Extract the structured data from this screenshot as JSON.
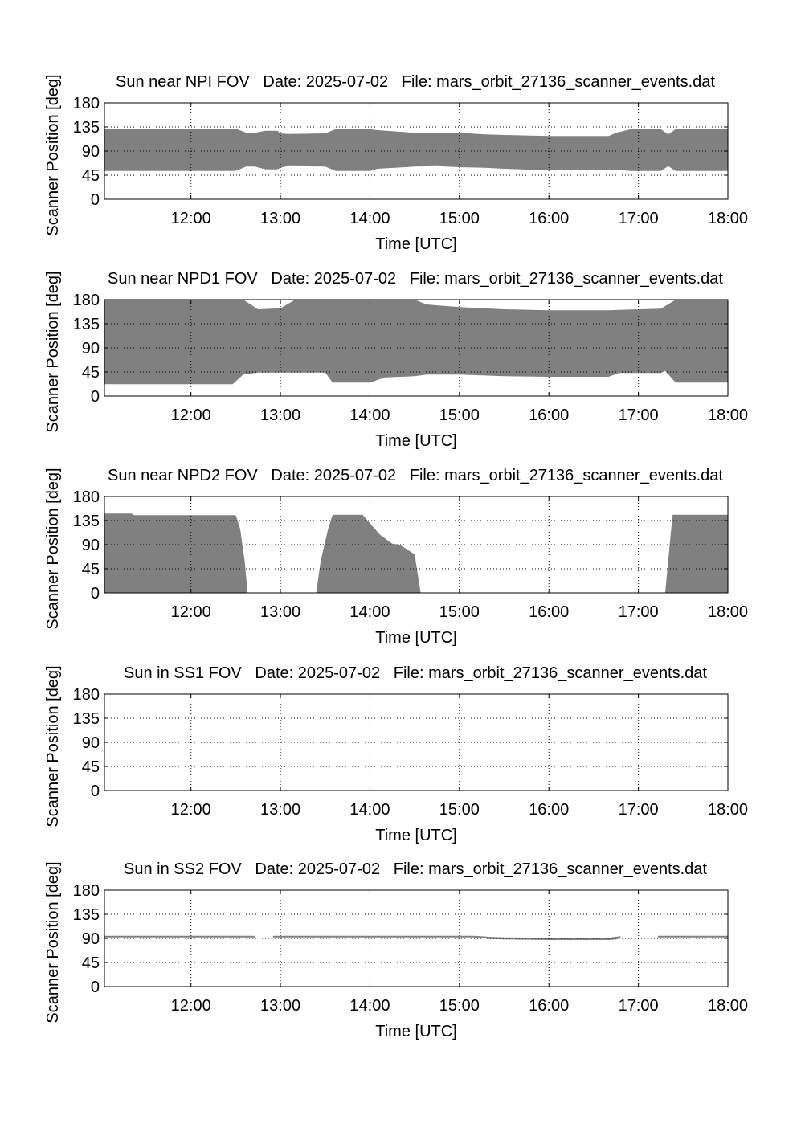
{
  "chart_data": [
    {
      "type": "area",
      "title": "Sun near NPI FOV   Date: 2025-07-02   File: mars_orbit_27136_scanner_events.dat",
      "xlabel": "Time [UTC]",
      "ylabel": "Scanner Position [deg]",
      "xlim": [
        "11:02",
        "18:00"
      ],
      "ylim": [
        0,
        180
      ],
      "xticks": [
        "12:00",
        "13:00",
        "14:00",
        "15:00",
        "16:00",
        "17:00",
        "18:00"
      ],
      "yticks": [
        "0",
        "45",
        "90",
        "135",
        "180"
      ],
      "grid": true,
      "color": "#808080",
      "series": [
        {
          "segments": [
            [
              [
                "11:02",
                53,
                132
              ],
              [
                "12:30",
                53,
                132
              ],
              [
                "12:37",
                61,
                124
              ],
              [
                "12:43",
                61,
                124
              ],
              [
                "12:50",
                56,
                128
              ],
              [
                "12:58",
                56,
                128
              ],
              [
                "13:00",
                59,
                123
              ],
              [
                "13:05",
                62,
                122
              ],
              [
                "13:30",
                61,
                123
              ],
              [
                "13:37",
                53,
                131
              ],
              [
                "14:00",
                53,
                131
              ],
              [
                "14:05",
                57,
                129
              ],
              [
                "14:30",
                61,
                124
              ],
              [
                "14:45",
                62,
                124
              ],
              [
                "15:00",
                60,
                124
              ],
              [
                "15:17",
                59,
                121
              ],
              [
                "15:30",
                57,
                120
              ],
              [
                "16:00",
                54,
                118
              ],
              [
                "16:40",
                54,
                118
              ],
              [
                "16:45",
                55,
                124
              ],
              [
                "16:55",
                53,
                131
              ],
              [
                "17:15",
                53,
                131
              ],
              [
                "17:20",
                62,
                121
              ],
              [
                "17:25",
                53,
                131
              ],
              [
                "18:00",
                53,
                132
              ]
            ]
          ]
        }
      ]
    },
    {
      "type": "area",
      "title": "Sun near NPD1 FOV   Date: 2025-07-02   File: mars_orbit_27136_scanner_events.dat",
      "xlabel": "Time [UTC]",
      "ylabel": "Scanner Position [deg]",
      "xlim": [
        "11:02",
        "18:00"
      ],
      "ylim": [
        0,
        180
      ],
      "xticks": [
        "12:00",
        "13:00",
        "14:00",
        "15:00",
        "16:00",
        "17:00",
        "18:00"
      ],
      "yticks": [
        "0",
        "45",
        "90",
        "135",
        "180"
      ],
      "grid": true,
      "color": "#808080",
      "series": [
        {
          "segments": [
            [
              [
                "11:02",
                22,
                180
              ],
              [
                "12:28",
                22,
                180
              ],
              [
                "12:35",
                40,
                180
              ],
              [
                "12:45",
                44,
                162
              ],
              [
                "13:00",
                44,
                164
              ],
              [
                "13:10",
                44,
                180
              ],
              [
                "13:30",
                44,
                180
              ],
              [
                "13:35",
                25,
                180
              ],
              [
                "14:00",
                25,
                180
              ],
              [
                "14:10",
                35,
                180
              ],
              [
                "14:30",
                37,
                180
              ],
              [
                "14:38",
                40,
                171
              ],
              [
                "15:00",
                40,
                166
              ],
              [
                "15:30",
                37,
                162
              ],
              [
                "16:00",
                36,
                160
              ],
              [
                "16:40",
                36,
                160
              ],
              [
                "16:47",
                43,
                161
              ],
              [
                "17:15",
                43,
                163
              ],
              [
                "17:18",
                47,
                168
              ],
              [
                "17:25",
                25,
                180
              ],
              [
                "18:00",
                25,
                180
              ]
            ]
          ]
        }
      ]
    },
    {
      "type": "area",
      "title": "Sun near NPD2 FOV   Date: 2025-07-02   File: mars_orbit_27136_scanner_events.dat",
      "xlabel": "Time [UTC]",
      "ylabel": "Scanner Position [deg]",
      "xlim": [
        "11:02",
        "18:00"
      ],
      "ylim": [
        0,
        180
      ],
      "xticks": [
        "12:00",
        "13:00",
        "14:00",
        "15:00",
        "16:00",
        "17:00",
        "18:00"
      ],
      "yticks": [
        "0",
        "45",
        "90",
        "135",
        "180"
      ],
      "grid": true,
      "color": "#808080",
      "series": [
        {
          "segments": [
            [
              [
                "11:02",
                0,
                148
              ],
              [
                "11:20",
                0,
                148
              ],
              [
                "11:22",
                0,
                145
              ],
              [
                "12:30",
                0,
                145
              ],
              [
                "12:33",
                0,
                120
              ],
              [
                "12:36",
                0,
                60
              ],
              [
                "12:38",
                0,
                0
              ]
            ],
            [
              [
                "13:24",
                0,
                0
              ],
              [
                "13:27",
                0,
                60
              ],
              [
                "13:32",
                0,
                120
              ],
              [
                "13:35",
                0,
                146
              ],
              [
                "13:55",
                0,
                146
              ],
              [
                "14:00",
                0,
                130
              ],
              [
                "14:07",
                0,
                108
              ],
              [
                "14:15",
                0,
                92
              ],
              [
                "14:20",
                0,
                90
              ],
              [
                "14:30",
                0,
                72
              ],
              [
                "14:34",
                0,
                0
              ]
            ],
            [
              [
                "17:18",
                0,
                0
              ],
              [
                "17:20",
                0,
                60
              ],
              [
                "17:22",
                0,
                120
              ],
              [
                "17:23",
                0,
                146
              ],
              [
                "18:00",
                0,
                146
              ]
            ]
          ]
        }
      ]
    },
    {
      "type": "area",
      "title": "Sun in SS1 FOV   Date: 2025-07-02   File: mars_orbit_27136_scanner_events.dat",
      "xlabel": "Time [UTC]",
      "ylabel": "Scanner Position [deg]",
      "xlim": [
        "11:02",
        "18:00"
      ],
      "ylim": [
        0,
        180
      ],
      "xticks": [
        "12:00",
        "13:00",
        "14:00",
        "15:00",
        "16:00",
        "17:00",
        "18:00"
      ],
      "yticks": [
        "0",
        "45",
        "90",
        "135",
        "180"
      ],
      "grid": true,
      "color": "#808080",
      "series": [
        {
          "segments": []
        }
      ]
    },
    {
      "type": "area",
      "title": "Sun in SS2 FOV   Date: 2025-07-02   File: mars_orbit_27136_scanner_events.dat",
      "xlabel": "Time [UTC]",
      "ylabel": "Scanner Position [deg]",
      "xlim": [
        "11:02",
        "18:00"
      ],
      "ylim": [
        0,
        180
      ],
      "xticks": [
        "12:00",
        "13:00",
        "14:00",
        "15:00",
        "16:00",
        "17:00",
        "18:00"
      ],
      "yticks": [
        "0",
        "45",
        "90",
        "135",
        "180"
      ],
      "grid": true,
      "color": "#808080",
      "series": [
        {
          "segments": [
            [
              [
                "11:02",
                92,
                95
              ],
              [
                "12:43",
                92,
                95
              ]
            ],
            [
              [
                "12:55",
                92,
                95
              ],
              [
                "15:10",
                92,
                95
              ],
              [
                "15:20",
                89,
                93
              ],
              [
                "15:30",
                88,
                92
              ],
              [
                "16:00",
                87,
                91
              ],
              [
                "16:40",
                87,
                91
              ],
              [
                "16:45",
                88,
                93
              ],
              [
                "16:48",
                90,
                94
              ]
            ],
            [
              [
                "17:13",
                92,
                95
              ],
              [
                "18:00",
                92,
                95
              ]
            ]
          ]
        }
      ]
    }
  ]
}
